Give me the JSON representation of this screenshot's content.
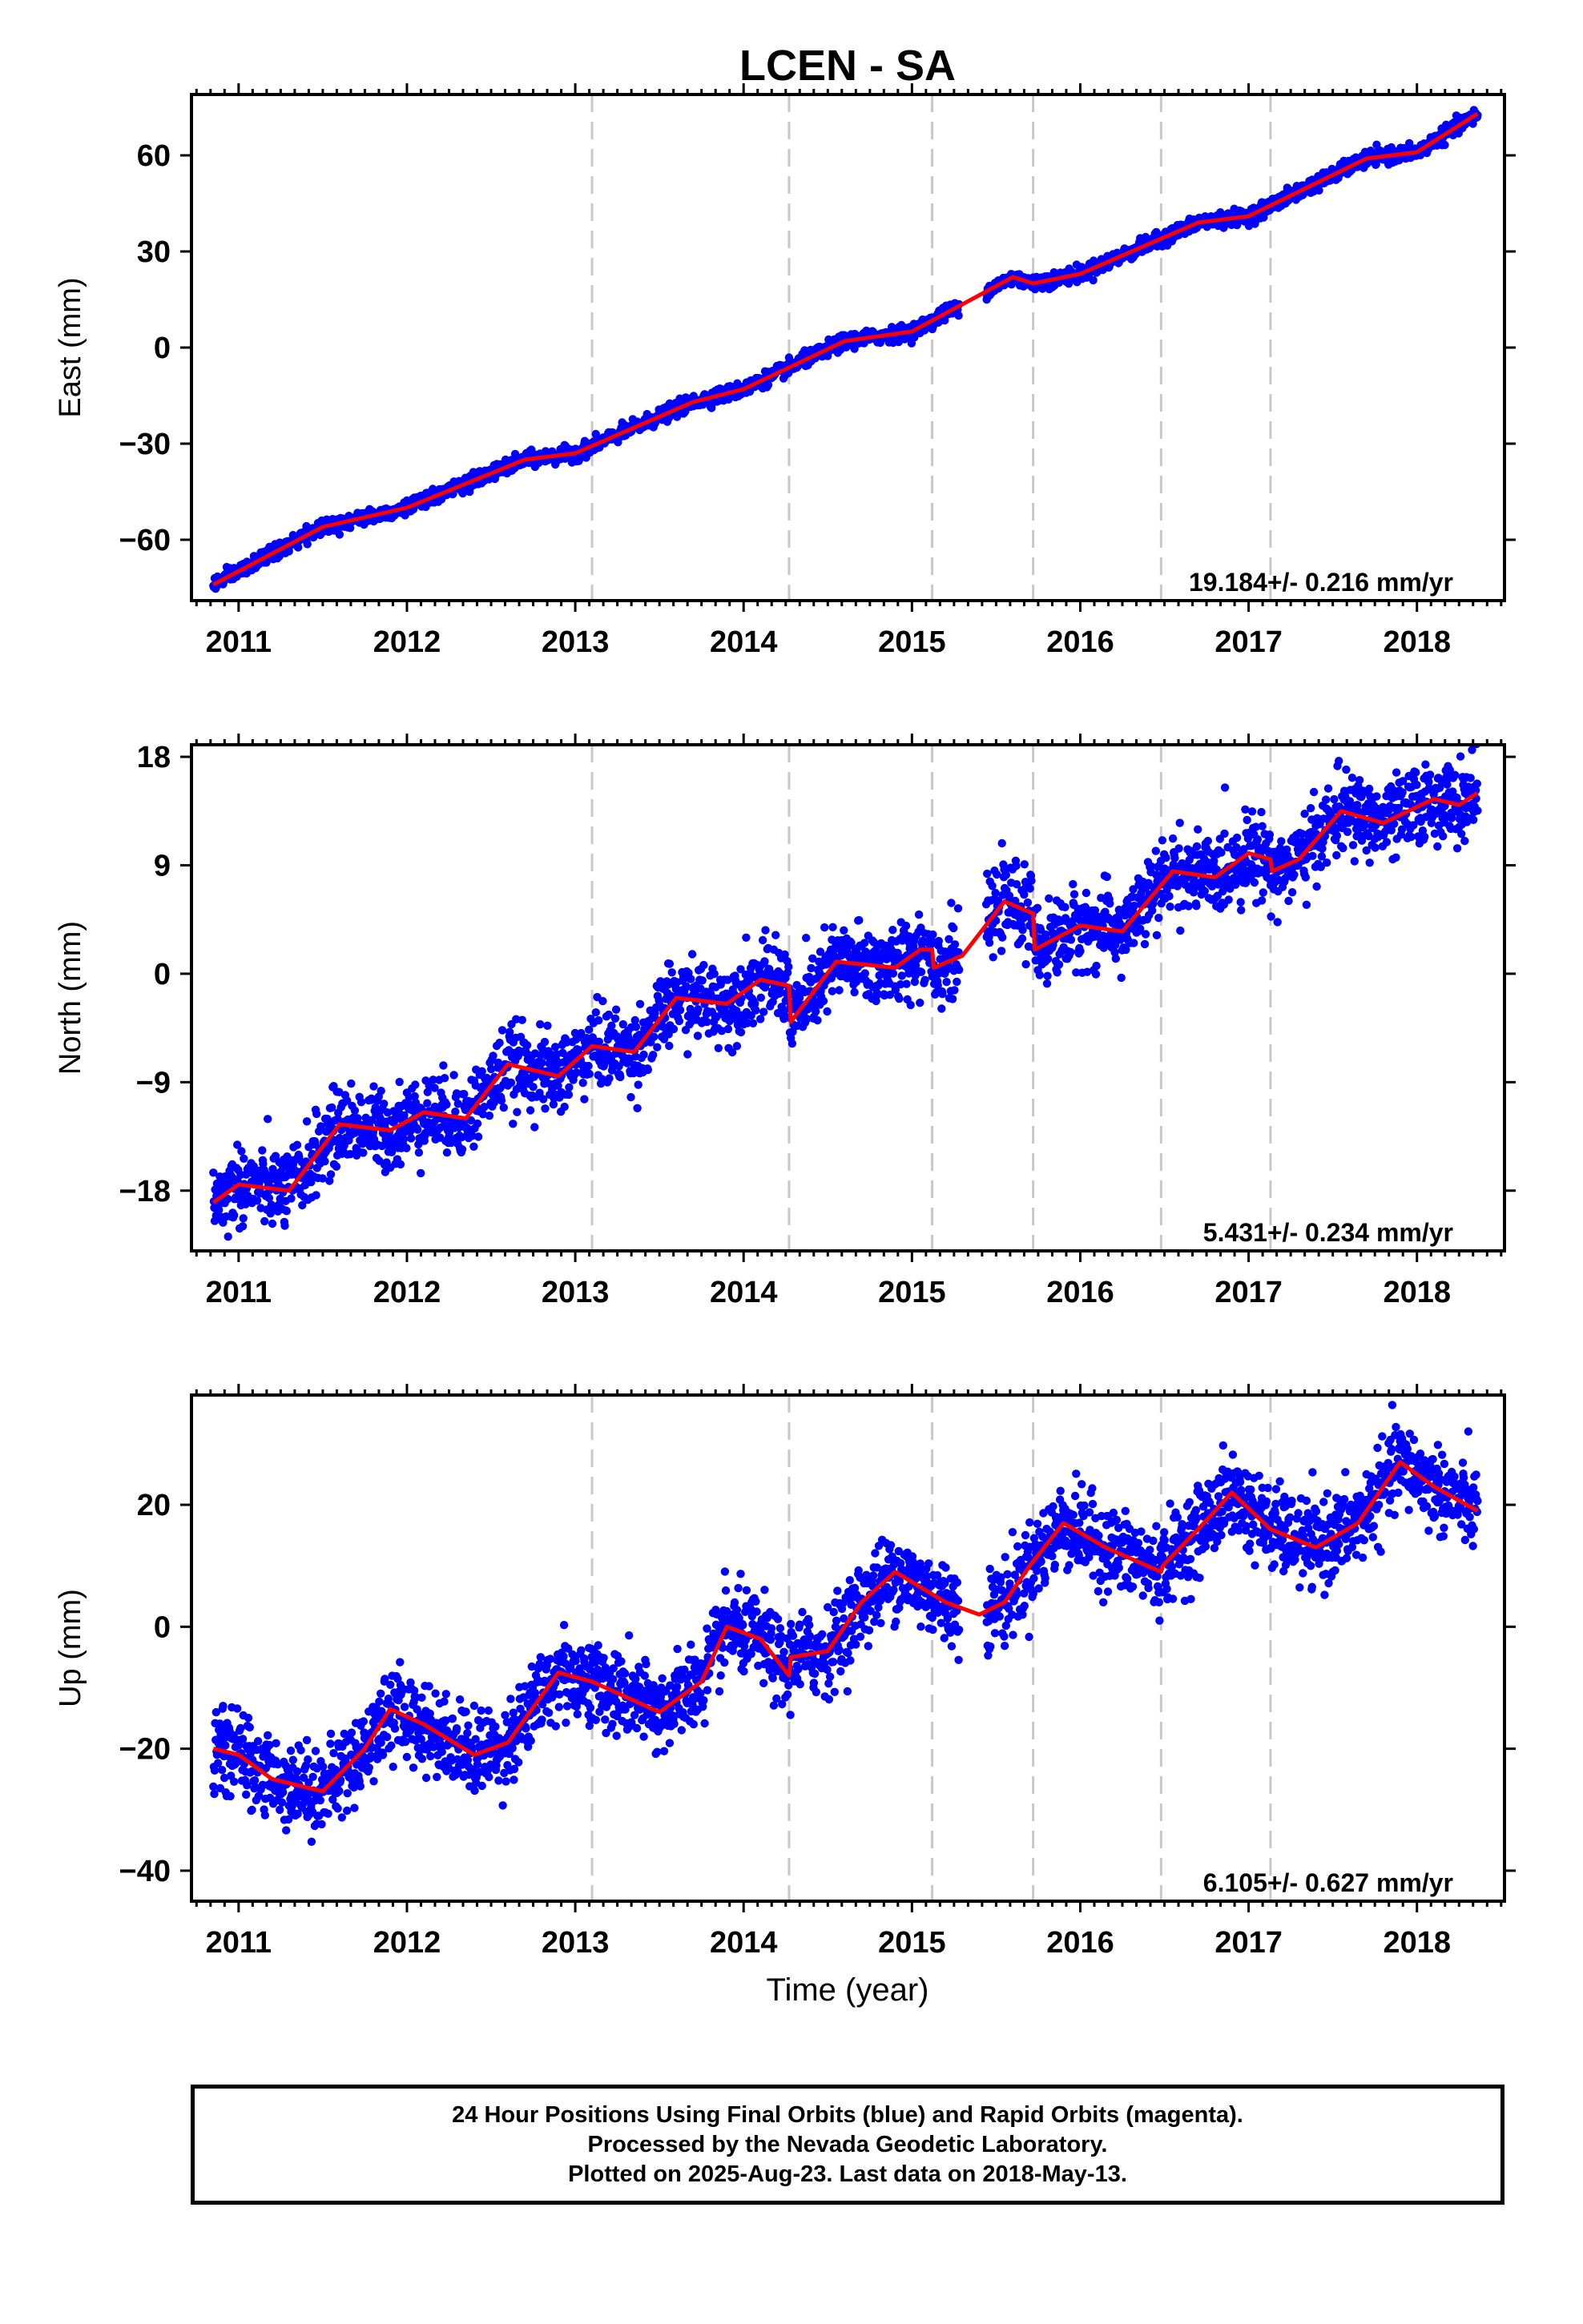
{
  "chart_data": {
    "type": "scatter",
    "title": "LCEN - SA",
    "xlabel": "Time (year)",
    "xlim": [
      2010.72,
      2018.52
    ],
    "x_ticks": [
      2011,
      2012,
      2013,
      2014,
      2015,
      2016,
      2017,
      2018
    ],
    "x_tick_labels": [
      "2011",
      "2012",
      "2013",
      "2014",
      "2015",
      "2016",
      "2017",
      "2018"
    ],
    "data_start": 2010.85,
    "data_end": 2018.36,
    "gap": [
      2015.28,
      2015.44
    ],
    "steps": [
      2013.1,
      2014.27,
      2015.12,
      2015.72,
      2016.48,
      2017.13
    ],
    "point_color": "#0000ff",
    "model_color": "#ff0000",
    "step_line_color": "#c8c8c8",
    "panels": [
      {
        "ylabel": "East (mm)",
        "ylim": [
          -79,
          79
        ],
        "yticks": [
          60,
          30,
          0,
          -30,
          -60
        ],
        "ytick_labels": [
          "60",
          "30",
          "0",
          "−30",
          "−60"
        ],
        "rate_text": "19.184+/- 0.216 mm/yr",
        "trend_rate": 19.184,
        "start_value": -74,
        "seasonal_amp": 1.6,
        "noise": 1.1,
        "step_sizes": [
          0,
          0,
          0,
          -2,
          0,
          0
        ],
        "model": [
          [
            2010.85,
            -74
          ],
          [
            2011.5,
            -56
          ],
          [
            2012.0,
            -50
          ],
          [
            2012.7,
            -35
          ],
          [
            2013.0,
            -33
          ],
          [
            2013.7,
            -17
          ],
          [
            2014.0,
            -13
          ],
          [
            2014.6,
            2
          ],
          [
            2015.0,
            5
          ],
          [
            2015.6,
            22
          ],
          [
            2015.72,
            20
          ],
          [
            2016.0,
            23
          ],
          [
            2016.7,
            39
          ],
          [
            2017.0,
            41
          ],
          [
            2017.7,
            59
          ],
          [
            2018.0,
            61
          ],
          [
            2018.36,
            73
          ]
        ]
      },
      {
        "ylabel": "North (mm)",
        "ylim": [
          -23,
          19
        ],
        "yticks": [
          18,
          9,
          0,
          -9,
          -18
        ],
        "ytick_labels": [
          "18",
          "9",
          "0",
          "−9",
          "−18"
        ],
        "rate_text": "5.431+/- 0.234 mm/yr",
        "trend_rate": 5.431,
        "start_value": -19,
        "seasonal_amp": 2.0,
        "noise": 1.6,
        "step_sizes": [
          0,
          -3,
          -1.5,
          -3,
          0,
          -1.5
        ],
        "model": [
          [
            2010.85,
            -19
          ],
          [
            2011.0,
            -17.5
          ],
          [
            2011.3,
            -18
          ],
          [
            2011.6,
            -12.5
          ],
          [
            2011.9,
            -13
          ],
          [
            2012.1,
            -11.5
          ],
          [
            2012.35,
            -12
          ],
          [
            2012.6,
            -7.5
          ],
          [
            2012.9,
            -8.5
          ],
          [
            2013.1,
            -6
          ],
          [
            2013.35,
            -6.5
          ],
          [
            2013.6,
            -2
          ],
          [
            2013.9,
            -2.5
          ],
          [
            2014.1,
            -0.5
          ],
          [
            2014.27,
            -1
          ],
          [
            2014.28,
            -4
          ],
          [
            2014.55,
            1
          ],
          [
            2014.9,
            0.5
          ],
          [
            2015.05,
            2
          ],
          [
            2015.12,
            2
          ],
          [
            2015.13,
            0.5
          ],
          [
            2015.3,
            1.5
          ],
          [
            2015.55,
            6
          ],
          [
            2015.72,
            5
          ],
          [
            2015.73,
            2
          ],
          [
            2016.0,
            4
          ],
          [
            2016.25,
            3.5
          ],
          [
            2016.55,
            8.5
          ],
          [
            2016.8,
            8
          ],
          [
            2017.0,
            10
          ],
          [
            2017.13,
            9.5
          ],
          [
            2017.14,
            8.5
          ],
          [
            2017.3,
            9.5
          ],
          [
            2017.55,
            13.5
          ],
          [
            2017.8,
            12.5
          ],
          [
            2018.1,
            14.5
          ],
          [
            2018.25,
            14
          ],
          [
            2018.36,
            15
          ]
        ]
      },
      {
        "ylabel": "Up (mm)",
        "ylim": [
          -45,
          38
        ],
        "yticks": [
          20,
          0,
          -20,
          -40
        ],
        "ytick_labels": [
          "20",
          "0",
          "−20",
          "−40"
        ],
        "rate_text": "6.105+/- 0.627 mm/yr",
        "trend_rate": 6.105,
        "start_value": -20,
        "seasonal_amp": 7.5,
        "noise": 3.4,
        "step_sizes": [
          0,
          -5,
          0,
          0,
          -2,
          0
        ],
        "model": [
          [
            2010.85,
            -20
          ],
          [
            2011.0,
            -21
          ],
          [
            2011.2,
            -25
          ],
          [
            2011.5,
            -27
          ],
          [
            2011.75,
            -20
          ],
          [
            2011.9,
            -13.5
          ],
          [
            2012.1,
            -16
          ],
          [
            2012.4,
            -21
          ],
          [
            2012.6,
            -19
          ],
          [
            2012.9,
            -7.5
          ],
          [
            2013.1,
            -9
          ],
          [
            2013.5,
            -14
          ],
          [
            2013.75,
            -9
          ],
          [
            2013.9,
            0
          ],
          [
            2014.1,
            -2
          ],
          [
            2014.27,
            -8
          ],
          [
            2014.28,
            -5
          ],
          [
            2014.5,
            -4
          ],
          [
            2014.7,
            4
          ],
          [
            2014.9,
            9
          ],
          [
            2015.2,
            4
          ],
          [
            2015.4,
            2
          ],
          [
            2015.55,
            4
          ],
          [
            2015.7,
            10
          ],
          [
            2015.9,
            17
          ],
          [
            2016.15,
            13
          ],
          [
            2016.48,
            9
          ],
          [
            2016.49,
            10
          ],
          [
            2016.7,
            16
          ],
          [
            2016.9,
            22
          ],
          [
            2017.13,
            16
          ],
          [
            2017.4,
            13
          ],
          [
            2017.65,
            17
          ],
          [
            2017.9,
            27
          ],
          [
            2018.1,
            23
          ],
          [
            2018.36,
            19
          ]
        ]
      }
    ]
  },
  "footer": {
    "line1": "24 Hour Positions Using Final Orbits (blue) and Rapid Orbits (magenta).",
    "line2": "Processed by the Nevada Geodetic Laboratory.",
    "line3": "Plotted on 2025-Aug-23. Last data on 2018-May-13."
  }
}
